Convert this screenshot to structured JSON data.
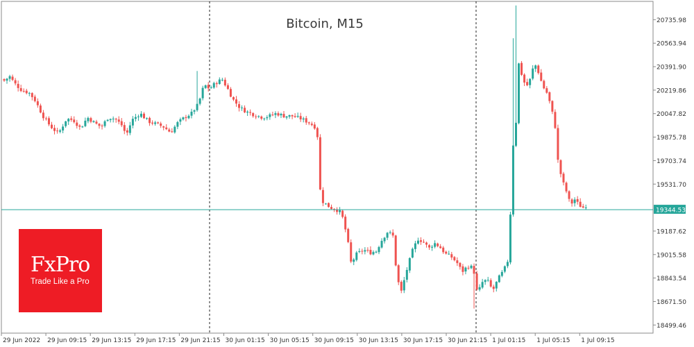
{
  "chart_data": {
    "type": "candlestick",
    "title": "Bitcoin, M15",
    "y_ticks": [
      20735.98,
      20563.94,
      20391.9,
      20219.86,
      20047.82,
      19875.78,
      19703.74,
      19531.7,
      19187.62,
      19015.58,
      18843.54,
      18671.5,
      18499.46
    ],
    "x_ticks": [
      "29 Jun 2022",
      "29 Jun 09:15",
      "29 Jun 13:15",
      "29 Jun 17:15",
      "29 Jun 21:15",
      "30 Jun 01:15",
      "30 Jun 05:15",
      "30 Jun 09:15",
      "30 Jun 13:15",
      "30 Jun 17:15",
      "30 Jun 21:15",
      "1 Jul 01:15",
      "1 Jul 05:15",
      "1 Jul 09:15"
    ],
    "ylim": [
      18440,
      20870
    ],
    "current_price": 19344.53,
    "session_separators": [
      "30 Jun 00:00",
      "1 Jul 00:00"
    ],
    "up_color": "#26a69a",
    "down_color": "#ef5350",
    "close_path": [
      [
        0,
        20290
      ],
      [
        8,
        20320
      ],
      [
        15,
        20270
      ],
      [
        25,
        20220
      ],
      [
        36,
        20200
      ],
      [
        44,
        20150
      ],
      [
        56,
        20030
      ],
      [
        66,
        19960
      ],
      [
        78,
        19900
      ],
      [
        90,
        20010
      ],
      [
        100,
        20000
      ],
      [
        110,
        19940
      ],
      [
        120,
        20020
      ],
      [
        130,
        19980
      ],
      [
        140,
        19950
      ],
      [
        150,
        20020
      ],
      [
        160,
        20010
      ],
      [
        170,
        19960
      ],
      [
        176,
        19890
      ],
      [
        184,
        20000
      ],
      [
        196,
        20050
      ],
      [
        208,
        19990
      ],
      [
        220,
        19970
      ],
      [
        230,
        19950
      ],
      [
        240,
        19910
      ],
      [
        250,
        19980
      ],
      [
        260,
        20020
      ],
      [
        270,
        20050
      ],
      [
        280,
        20120
      ],
      [
        288,
        20260
      ],
      [
        296,
        20230
      ],
      [
        304,
        20270
      ],
      [
        314,
        20300
      ],
      [
        322,
        20230
      ],
      [
        330,
        20150
      ],
      [
        340,
        20090
      ],
      [
        350,
        20060
      ],
      [
        360,
        20040
      ],
      [
        372,
        20020
      ],
      [
        382,
        20030
      ],
      [
        392,
        20050
      ],
      [
        404,
        20030
      ],
      [
        416,
        20030
      ],
      [
        428,
        20010
      ],
      [
        440,
        19980
      ],
      [
        448,
        19950
      ],
      [
        452,
        19870
      ],
      [
        456,
        19420
      ],
      [
        462,
        19390
      ],
      [
        470,
        19360
      ],
      [
        480,
        19340
      ],
      [
        486,
        19320
      ],
      [
        494,
        19150
      ],
      [
        500,
        18950
      ],
      [
        508,
        19020
      ],
      [
        518,
        19050
      ],
      [
        528,
        19030
      ],
      [
        536,
        19040
      ],
      [
        544,
        19120
      ],
      [
        552,
        19180
      ],
      [
        560,
        19160
      ],
      [
        566,
        18850
      ],
      [
        572,
        18740
      ],
      [
        580,
        18900
      ],
      [
        588,
        19040
      ],
      [
        596,
        19130
      ],
      [
        604,
        19110
      ],
      [
        612,
        19060
      ],
      [
        620,
        19100
      ],
      [
        628,
        19070
      ],
      [
        636,
        19020
      ],
      [
        644,
        19000
      ],
      [
        652,
        18960
      ],
      [
        660,
        18890
      ],
      [
        668,
        18930
      ],
      [
        676,
        18920
      ],
      [
        682,
        18720
      ],
      [
        688,
        18810
      ],
      [
        696,
        18830
      ],
      [
        704,
        18750
      ],
      [
        712,
        18840
      ],
      [
        720,
        18900
      ],
      [
        728,
        19000
      ],
      [
        732,
        19880
      ],
      [
        736,
        19720
      ],
      [
        740,
        20440
      ],
      [
        746,
        20330
      ],
      [
        752,
        20240
      ],
      [
        758,
        20300
      ],
      [
        764,
        20420
      ],
      [
        770,
        20350
      ],
      [
        776,
        20250
      ],
      [
        782,
        20200
      ],
      [
        788,
        20100
      ],
      [
        794,
        19950
      ],
      [
        798,
        19700
      ],
      [
        804,
        19560
      ],
      [
        810,
        19480
      ],
      [
        816,
        19380
      ],
      [
        822,
        19420
      ],
      [
        828,
        19380
      ],
      [
        834,
        19360
      ],
      [
        840,
        19380
      ],
      [
        846,
        19344.53
      ]
    ]
  },
  "brand": {
    "logo": "FxPro",
    "tagline": "Trade Like a Pro"
  }
}
